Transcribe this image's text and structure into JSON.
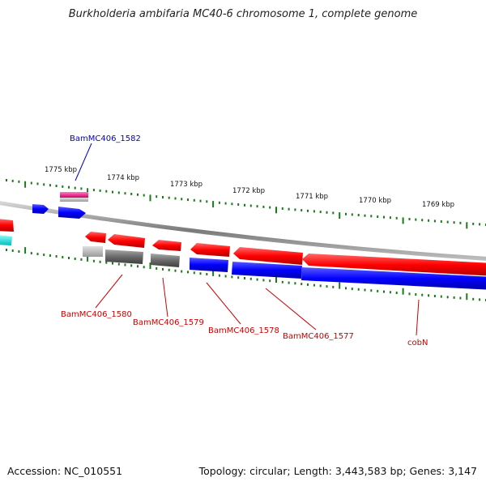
{
  "title": "Burkholderia ambifaria MC40-6 chromosome 1, complete genome",
  "footer": {
    "accession": "Accession: NC_010551",
    "summary": "Topology: circular; Length: 3,443,583 bp; Genes: 3,147"
  },
  "colors": {
    "tick": "#1a7a1a",
    "backbone": "#888888",
    "forward": "#ff0000",
    "reverse": "#0000ff",
    "pseudo": "#555555",
    "rna": "#ff2d95",
    "label_red": "#cc0000",
    "label_blue": "#0000cc"
  },
  "ticks": [
    {
      "label": "1775 kbp"
    },
    {
      "label": "1774 kbp"
    },
    {
      "label": "1773 kbp"
    },
    {
      "label": "1772 kbp"
    },
    {
      "label": "1771 kbp"
    },
    {
      "label": "1770 kbp"
    },
    {
      "label": "1769 kbp"
    }
  ],
  "gene_labels": [
    {
      "text": "BamMC406_1582",
      "color": "blue"
    },
    {
      "text": "BamMC406_1580",
      "color": "red"
    },
    {
      "text": "BamMC406_1579",
      "color": "red"
    },
    {
      "text": "BamMC406_1578",
      "color": "red"
    },
    {
      "text": "BamMC406_1577",
      "color": "red"
    },
    {
      "text": "cobN",
      "color": "red"
    }
  ]
}
